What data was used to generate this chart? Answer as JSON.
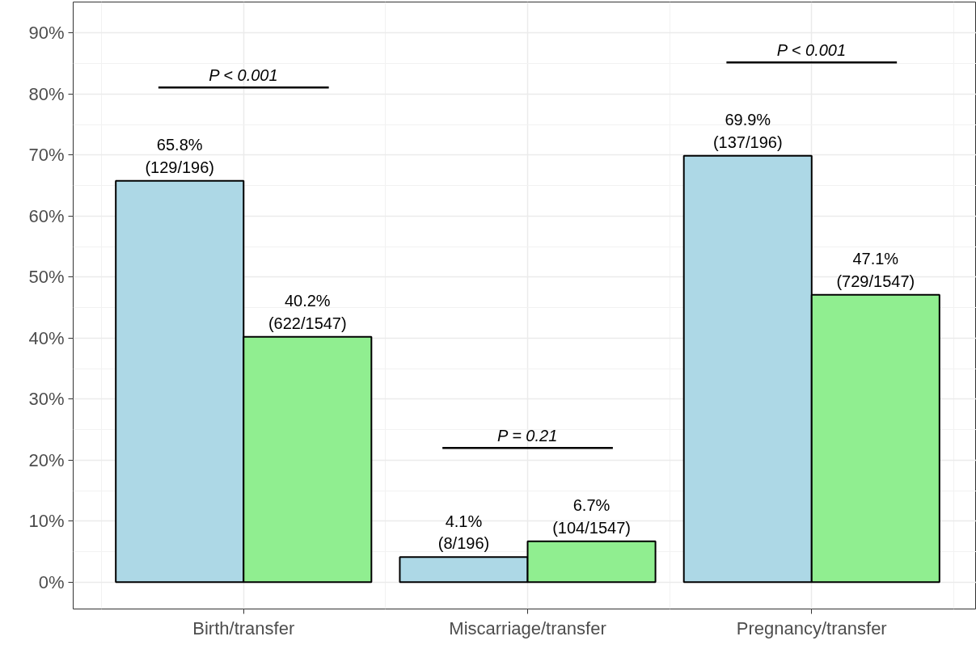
{
  "chart_data": {
    "type": "bar",
    "categories": [
      "Birth/transfer",
      "Miscarriage/transfer",
      "Pregnancy/transfer"
    ],
    "series": [
      {
        "color": "#add8e6",
        "values": [
          65.8,
          4.1,
          69.9
        ],
        "value_labels": [
          "65.8%\n(129/196)",
          "4.1%\n(8/196)",
          "69.9%\n(137/196)"
        ]
      },
      {
        "color": "#90ee90",
        "values": [
          40.2,
          6.7,
          47.1
        ],
        "value_labels": [
          "40.2%\n(622/1547)",
          "6.7%\n(104/1547)",
          "47.1%\n(729/1547)"
        ]
      }
    ],
    "ylim": [
      -4.4,
      95.1
    ],
    "yticks": [
      {
        "value": 0,
        "label": "0%"
      },
      {
        "value": 10,
        "label": "10%"
      },
      {
        "value": 20,
        "label": "20%"
      },
      {
        "value": 30,
        "label": "30%"
      },
      {
        "value": 40,
        "label": "40%"
      },
      {
        "value": 50,
        "label": "50%"
      },
      {
        "value": 60,
        "label": "60%"
      },
      {
        "value": 70,
        "label": "70%"
      },
      {
        "value": 80,
        "label": "80%"
      },
      {
        "value": 90,
        "label": "90%"
      }
    ],
    "annotations": [
      "P < 0.001",
      "P = 0.21",
      "P < 0.001"
    ],
    "grid": true
  }
}
